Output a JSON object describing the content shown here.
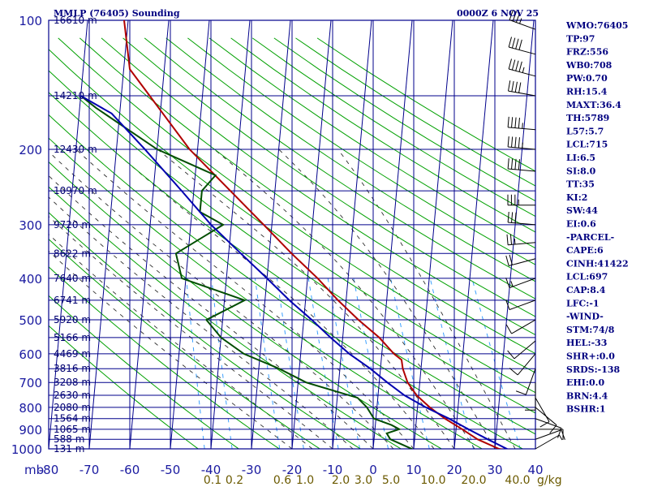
{
  "header": {
    "title": "MMLP (76405) Sounding",
    "datetime": "0000Z  6 NOV 25"
  },
  "stats": [
    "WMO:76405",
    "TP:97",
    "FRZ:556",
    "WB0:708",
    "PW:0.70",
    "RH:15.4",
    "MAXT:36.4",
    "TH:5789",
    "L57:5.7",
    "LCL:715",
    "LI:6.5",
    "SI:8.0",
    "TT:35",
    "KI:2",
    "SW:44",
    "EI:0.6",
    "-PARCEL-",
    "CAPE:6",
    "CINH:41422",
    "LCL:697",
    "CAP:8.4",
    "LFC:-1",
    "-WIND-",
    "STM:74/8",
    "HEL:-33",
    "SHR+:0.0",
    "SRDS:-138",
    "EHI:0.0",
    "BRN:4.4",
    "BSHR:1"
  ],
  "colors": {
    "grid": "#00008b",
    "dry_adiabat": "#00a000",
    "moist_adiabat": "#2d2d2d",
    "mixing_ratio": "#3aa0ff",
    "temperature": "#b00000",
    "dewpoint": "#004d00",
    "parcel": "#0000b0",
    "wind_barb": "#000000"
  },
  "chart_data": {
    "type": "line",
    "chart_kind": "skew-T log-P sounding",
    "xlabel": "",
    "ylabel": "mb",
    "pressure_axis": {
      "ticks": [
        100,
        200,
        300,
        400,
        500,
        600,
        700,
        800,
        900,
        1000
      ],
      "labels": [
        "100",
        "200",
        "300",
        "400",
        "500",
        "600",
        "700",
        "800",
        "900",
        "1000"
      ],
      "unit_label": "mb",
      "range": [
        100,
        1000
      ]
    },
    "temperature_axis": {
      "ticks": [
        -80,
        -70,
        -60,
        -50,
        -40,
        -30,
        -20,
        -10,
        0,
        10,
        20,
        30,
        40
      ],
      "labels": [
        "-80",
        "-70",
        "-60",
        "-50",
        "-40",
        "-30",
        "-20",
        "-10",
        "0",
        "10",
        "20",
        "30",
        "40"
      ],
      "range": [
        -80,
        40
      ]
    },
    "height_labels": [
      {
        "p": 100,
        "text": "16610 m"
      },
      {
        "p": 150,
        "text": "14210 m"
      },
      {
        "p": 200,
        "text": "12430 m"
      },
      {
        "p": 250,
        "text": "10970 m"
      },
      {
        "p": 300,
        "text": "9720 m"
      },
      {
        "p": 350,
        "text": "8622 m"
      },
      {
        "p": 400,
        "text": "7640 m"
      },
      {
        "p": 450,
        "text": "6741 m"
      },
      {
        "p": 500,
        "text": "5920 m"
      },
      {
        "p": 550,
        "text": "5166 m"
      },
      {
        "p": 600,
        "text": "4469 m"
      },
      {
        "p": 650,
        "text": "3816 m"
      },
      {
        "p": 700,
        "text": "3208 m"
      },
      {
        "p": 750,
        "text": "2630 m"
      },
      {
        "p": 800,
        "text": "2080 m"
      },
      {
        "p": 850,
        "text": "1564 m"
      },
      {
        "p": 900,
        "text": "1065 m"
      },
      {
        "p": 950,
        "text": "588 m"
      },
      {
        "p": 1000,
        "text": "131 m"
      }
    ],
    "mixing_ratio_labels": [
      "0.1",
      "0.2",
      "0.6",
      "1.0",
      "2.0",
      "3.0",
      "5.0",
      "10.0",
      "20.0",
      "40.0"
    ],
    "mixing_ratio_values": [
      0.1,
      0.2,
      0.6,
      1.0,
      2.0,
      3.0,
      5.0,
      10.0,
      20.0,
      40.0
    ],
    "mixing_ratio_unit": "g/kg",
    "series": [
      {
        "name": "temperature",
        "points": [
          [
            1011,
            34.0
          ],
          [
            1000,
            31.0
          ],
          [
            950,
            25.5
          ],
          [
            900,
            21.5
          ],
          [
            850,
            17.0
          ],
          [
            800,
            13.0
          ],
          [
            750,
            9.5
          ],
          [
            700,
            7.0
          ],
          [
            650,
            5.5
          ],
          [
            620,
            5.0
          ],
          [
            600,
            3.0
          ],
          [
            550,
            -1.0
          ],
          [
            500,
            -6.5
          ],
          [
            450,
            -12.0
          ],
          [
            400,
            -17.5
          ],
          [
            350,
            -24.5
          ],
          [
            300,
            -32.0
          ],
          [
            250,
            -41.0
          ],
          [
            200,
            -52.0
          ],
          [
            150,
            -63.0
          ],
          [
            130,
            -68.5
          ],
          [
            100,
            -71.0
          ]
        ]
      },
      {
        "name": "dewpoint",
        "points": [
          [
            1011,
            10.0
          ],
          [
            1000,
            9.5
          ],
          [
            950,
            4.0
          ],
          [
            920,
            3.0
          ],
          [
            900,
            6.0
          ],
          [
            880,
            4.0
          ],
          [
            850,
            -0.5
          ],
          [
            800,
            -2.5
          ],
          [
            760,
            -5.0
          ],
          [
            700,
            -18.0
          ],
          [
            650,
            -25.0
          ],
          [
            600,
            -34.0
          ],
          [
            550,
            -40.0
          ],
          [
            500,
            -44.0
          ],
          [
            450,
            -35.0
          ],
          [
            400,
            -51.0
          ],
          [
            350,
            -53.0
          ],
          [
            300,
            -42.0
          ],
          [
            280,
            -48.0
          ],
          [
            250,
            -48.0
          ],
          [
            230,
            -45.0
          ],
          [
            200,
            -60.0
          ],
          [
            160,
            -76.0
          ],
          [
            150,
            -80.0
          ]
        ]
      },
      {
        "name": "parcel",
        "points": [
          [
            1011,
            34.0
          ],
          [
            950,
            28.0
          ],
          [
            900,
            23.0
          ],
          [
            850,
            18.0
          ],
          [
            800,
            12.0
          ],
          [
            750,
            6.5
          ],
          [
            700,
            2.0
          ],
          [
            650,
            -2.5
          ],
          [
            600,
            -8.0
          ],
          [
            550,
            -13.0
          ],
          [
            500,
            -18.0
          ],
          [
            450,
            -24.0
          ],
          [
            400,
            -30.0
          ],
          [
            350,
            -37.0
          ],
          [
            300,
            -45.0
          ],
          [
            250,
            -53.0
          ],
          [
            200,
            -63.0
          ],
          [
            165,
            -72.0
          ],
          [
            150,
            -80.0
          ]
        ]
      }
    ],
    "wind_barbs": [
      {
        "p": 105,
        "dir": 290,
        "kt": 35
      },
      {
        "p": 120,
        "dir": 285,
        "kt": 40
      },
      {
        "p": 135,
        "dir": 285,
        "kt": 45
      },
      {
        "p": 150,
        "dir": 280,
        "kt": 40
      },
      {
        "p": 180,
        "dir": 275,
        "kt": 45
      },
      {
        "p": 200,
        "dir": 275,
        "kt": 45
      },
      {
        "p": 225,
        "dir": 275,
        "kt": 40
      },
      {
        "p": 270,
        "dir": 270,
        "kt": 35
      },
      {
        "p": 300,
        "dir": 275,
        "kt": 30
      },
      {
        "p": 330,
        "dir": 265,
        "kt": 25
      },
      {
        "p": 360,
        "dir": 255,
        "kt": 20
      },
      {
        "p": 400,
        "dir": 250,
        "kt": 15
      },
      {
        "p": 450,
        "dir": 250,
        "kt": 10
      },
      {
        "p": 500,
        "dir": 240,
        "kt": 10
      },
      {
        "p": 560,
        "dir": 230,
        "kt": 10
      },
      {
        "p": 600,
        "dir": 220,
        "kt": 10
      },
      {
        "p": 650,
        "dir": 200,
        "kt": 10
      },
      {
        "p": 700,
        "dir": 180,
        "kt": 10
      },
      {
        "p": 760,
        "dir": 150,
        "kt": 10
      },
      {
        "p": 800,
        "dir": 130,
        "kt": 10
      },
      {
        "p": 850,
        "dir": 110,
        "kt": 10
      },
      {
        "p": 900,
        "dir": 90,
        "kt": 10
      },
      {
        "p": 950,
        "dir": 70,
        "kt": 10
      },
      {
        "p": 1000,
        "dir": 60,
        "kt": 5
      }
    ]
  }
}
